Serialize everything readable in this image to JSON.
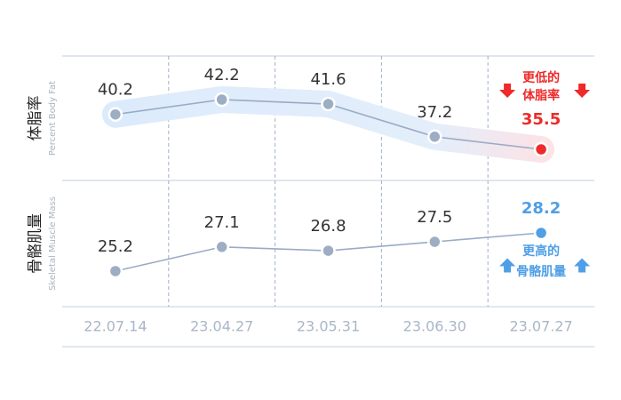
{
  "chart_data": {
    "type": "line",
    "categories": [
      "22.07.14",
      "23.04.27",
      "23.05.31",
      "23.06.30",
      "23.07.27"
    ],
    "series": [
      {
        "name": "体脂率",
        "subtitle": "Percent Body Fat",
        "color": "#9aabc4",
        "accent": "#ee2a2a",
        "values": [
          40.2,
          42.2,
          41.6,
          37.2,
          35.5
        ],
        "annotation": [
          "更低的",
          "体脂率"
        ],
        "direction": "down"
      },
      {
        "name": "骨骼肌量",
        "subtitle": "Skeletal Muscle Mass",
        "color": "#9aabc4",
        "accent": "#4f9fe6",
        "values": [
          25.2,
          27.1,
          26.8,
          27.5,
          28.2
        ],
        "annotation": [
          "更高的",
          "骨骼肌量"
        ],
        "direction": "up"
      }
    ]
  }
}
